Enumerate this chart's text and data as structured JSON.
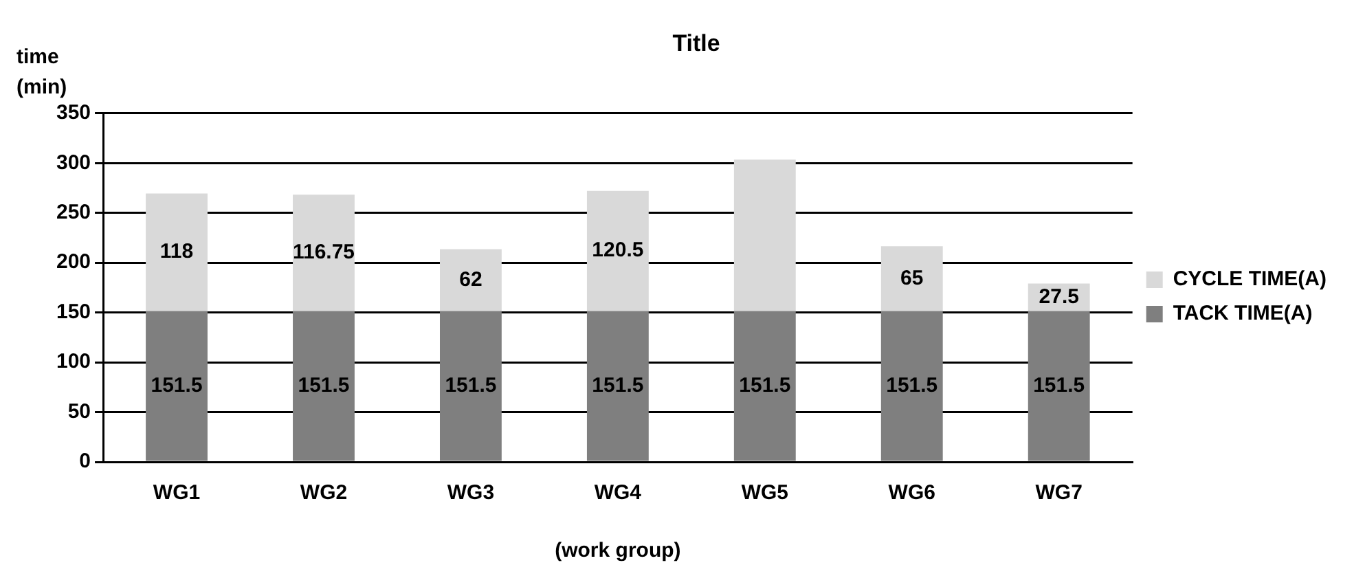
{
  "chart_data": {
    "type": "bar",
    "title": "Title",
    "xlabel": "(work group)",
    "ylabel": "time (min)",
    "categories": [
      "WG1",
      "WG2",
      "WG3",
      "WG4",
      "WG5",
      "WG6",
      "WG7"
    ],
    "stacked": true,
    "ylim": [
      0,
      350
    ],
    "yticks": [
      0,
      50,
      100,
      150,
      200,
      250,
      300,
      350
    ],
    "grid": "y",
    "legend": "right",
    "series": [
      {
        "name": "TACK TIME(A)",
        "color": "#7f7f7f",
        "values": [
          151.5,
          151.5,
          151.5,
          151.5,
          151.5,
          151.5,
          151.5
        ],
        "value_labels": [
          "151.5",
          "151.5",
          "151.5",
          "151.5",
          "151.5",
          "151.5",
          "151.5"
        ]
      },
      {
        "name": "CYCLE TIME(A)",
        "color": "#d9d9d9",
        "values": [
          118,
          116.75,
          62,
          120.5,
          152,
          65,
          27.5
        ],
        "value_labels": [
          "118",
          "116.75",
          "62",
          "120.5",
          null,
          "65",
          "27.5"
        ]
      }
    ]
  }
}
